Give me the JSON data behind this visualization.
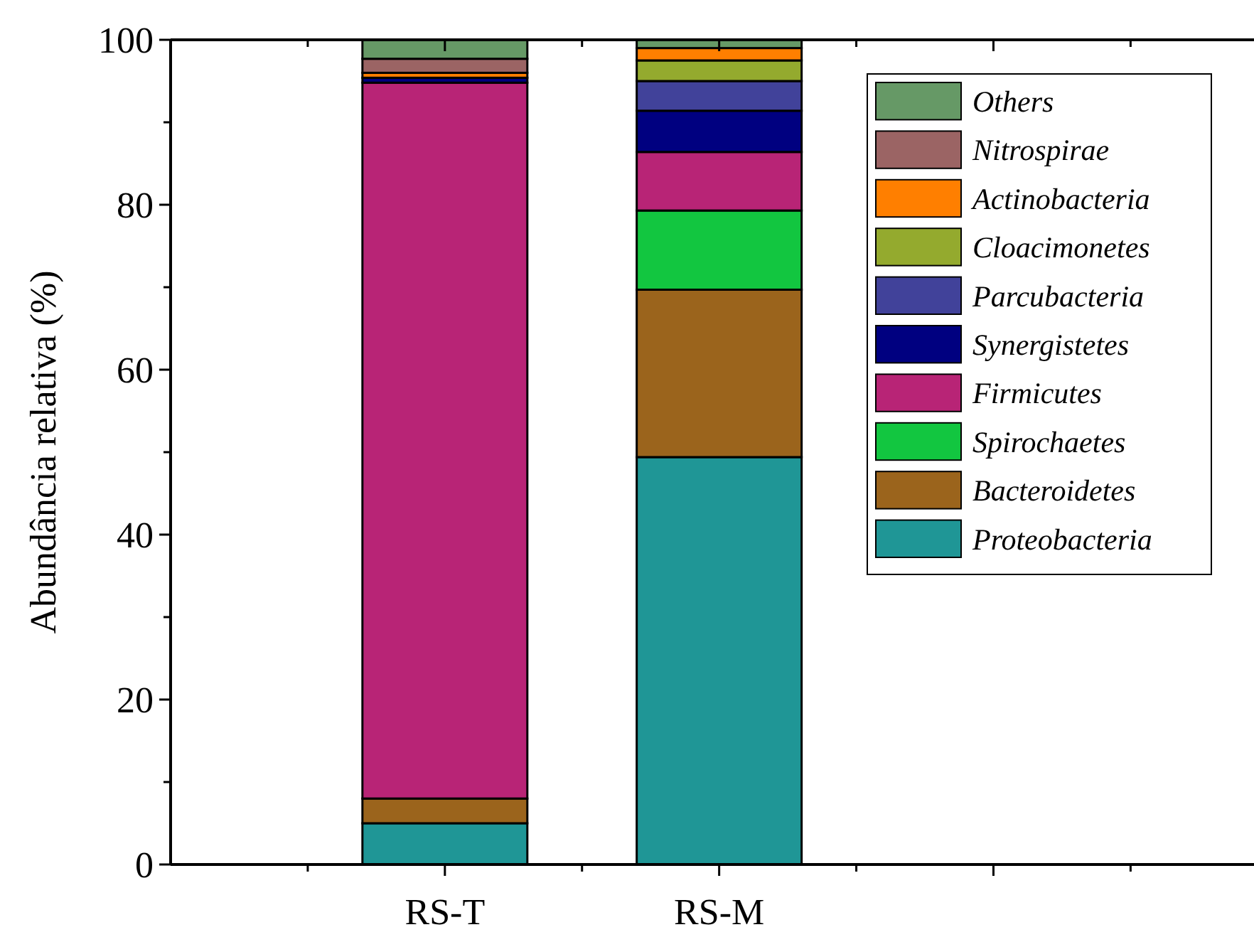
{
  "chart_data": {
    "type": "bar",
    "stacked": true,
    "ylabel": "Abundância relativa (%)",
    "categories": [
      "RS-T",
      "RS-M"
    ],
    "ylim": [
      0,
      100
    ],
    "yticks": [
      0,
      20,
      40,
      60,
      80,
      100
    ],
    "grid": false,
    "legend": "top right",
    "series": [
      {
        "name": "Proteobacteria",
        "color": "#1f9696",
        "values": [
          5.0,
          49.4
        ]
      },
      {
        "name": "Bacteroidetes",
        "color": "#9b641c",
        "values": [
          3.0,
          20.3
        ]
      },
      {
        "name": "Spirochaetes",
        "color": "#12c640",
        "values": [
          0,
          9.6
        ]
      },
      {
        "name": "Firmicutes",
        "color": "#b82476",
        "values": [
          86.8,
          7.1
        ]
      },
      {
        "name": "Synergistetes",
        "color": "#000080",
        "values": [
          0.6,
          5.0
        ]
      },
      {
        "name": "Parcubacteria",
        "color": "#41429a",
        "values": [
          0,
          3.6
        ]
      },
      {
        "name": "Cloacimonetes",
        "color": "#94aa2e",
        "values": [
          0,
          2.5
        ]
      },
      {
        "name": "Actinobacteria",
        "color": "#ff7f00",
        "values": [
          0.6,
          1.5
        ]
      },
      {
        "name": "Nitrospirae",
        "color": "#9b6464",
        "values": [
          1.7,
          0
        ]
      },
      {
        "name": "Others",
        "color": "#669966",
        "values": [
          2.3,
          1.0
        ]
      }
    ]
  }
}
